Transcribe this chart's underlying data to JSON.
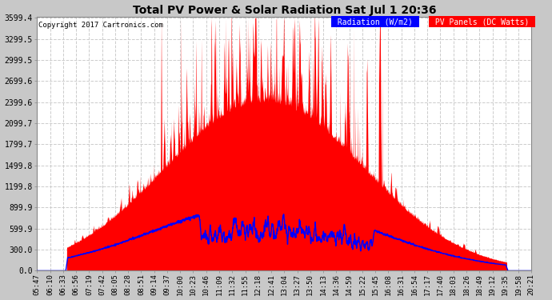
{
  "title": "Total PV Power & Solar Radiation Sat Jul 1 20:36",
  "copyright": "Copyright 2017 Cartronics.com",
  "legend_radiation": "Radiation (W/m2)",
  "legend_pv": "PV Panels (DC Watts)",
  "yticks": [
    0.0,
    300.0,
    599.9,
    899.9,
    1199.8,
    1499.8,
    1799.7,
    2099.7,
    2399.6,
    2699.6,
    2999.5,
    3299.5,
    3599.4
  ],
  "ymax": 3599.4,
  "ymin": 0.0,
  "bg_color": "#c8c8c8",
  "plot_bg_color": "#ffffff",
  "grid_color": "#cccccc",
  "pv_color": "#ff0000",
  "radiation_color": "#0000ff",
  "xtick_labels": [
    "05:47",
    "06:10",
    "06:33",
    "06:56",
    "07:19",
    "07:42",
    "08:05",
    "08:28",
    "08:51",
    "09:14",
    "09:37",
    "10:00",
    "10:23",
    "10:46",
    "11:09",
    "11:32",
    "11:55",
    "12:18",
    "12:41",
    "13:04",
    "13:27",
    "13:50",
    "14:13",
    "14:36",
    "14:59",
    "15:22",
    "15:45",
    "16:08",
    "16:31",
    "16:54",
    "17:17",
    "17:40",
    "18:03",
    "18:26",
    "18:49",
    "19:12",
    "19:35",
    "19:58",
    "20:21"
  ],
  "n_points": 2000,
  "figwidth": 6.9,
  "figheight": 3.75,
  "dpi": 100
}
